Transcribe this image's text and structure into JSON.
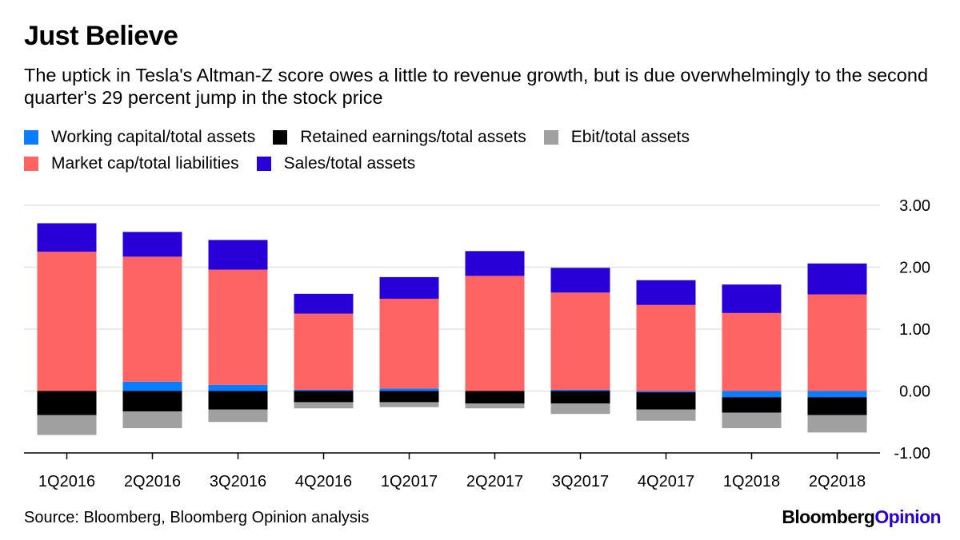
{
  "header": {
    "title": "Just Believe",
    "subtitle": "The uptick in Tesla's Altman-Z score owes a little to revenue growth, but is due overwhelmingly to the second quarter's 29 percent jump in the stock price"
  },
  "footer": {
    "source": "Source: Bloomberg, Bloomberg Opinion analysis",
    "brand_main": "Bloomberg",
    "brand_accent": "Opinion"
  },
  "colors": {
    "working_capital": "#0a7cff",
    "retained_earnings": "#000000",
    "ebit": "#a0a0a0",
    "market_cap": "#ff6464",
    "sales": "#2800d7",
    "brand_accent": "#2800d7"
  },
  "chart_data": {
    "type": "bar",
    "stacked": true,
    "categories": [
      "1Q2016",
      "2Q2016",
      "3Q2016",
      "4Q2016",
      "1Q2017",
      "2Q2017",
      "3Q2017",
      "4Q2017",
      "1Q2018",
      "2Q2018"
    ],
    "series": [
      {
        "name": "Working capital/total assets",
        "color": "#0a7cff",
        "values": [
          0.0,
          0.15,
          0.1,
          0.02,
          0.04,
          0.0,
          0.02,
          -0.02,
          -0.1,
          -0.1
        ]
      },
      {
        "name": "Retained earnings/total assets",
        "color": "#000000",
        "values": [
          -0.39,
          -0.33,
          -0.3,
          -0.18,
          -0.18,
          -0.2,
          -0.2,
          -0.28,
          -0.25,
          -0.29
        ]
      },
      {
        "name": "Ebit/total assets",
        "color": "#a0a0a0",
        "values": [
          -0.32,
          -0.27,
          -0.2,
          -0.1,
          -0.08,
          -0.08,
          -0.17,
          -0.18,
          -0.25,
          -0.28
        ]
      },
      {
        "name": "Market cap/total liabilities",
        "color": "#ff6464",
        "values": [
          2.25,
          2.02,
          1.86,
          1.23,
          1.45,
          1.86,
          1.57,
          1.39,
          1.26,
          1.56
        ]
      },
      {
        "name": "Sales/total assets",
        "color": "#2800d7",
        "values": [
          0.46,
          0.4,
          0.48,
          0.32,
          0.35,
          0.4,
          0.4,
          0.4,
          0.46,
          0.5
        ]
      }
    ],
    "ylim": [
      -1.0,
      3.0
    ],
    "yticks": [
      3.0,
      2.0,
      1.0,
      0.0,
      -1.0
    ],
    "ytick_labels": [
      "3.00",
      "2.00",
      "1.00",
      "0.00",
      "-1.00"
    ],
    "y_axis_side": "right",
    "grid": true,
    "legend_position": "top-left",
    "xlabel": "",
    "ylabel": ""
  }
}
